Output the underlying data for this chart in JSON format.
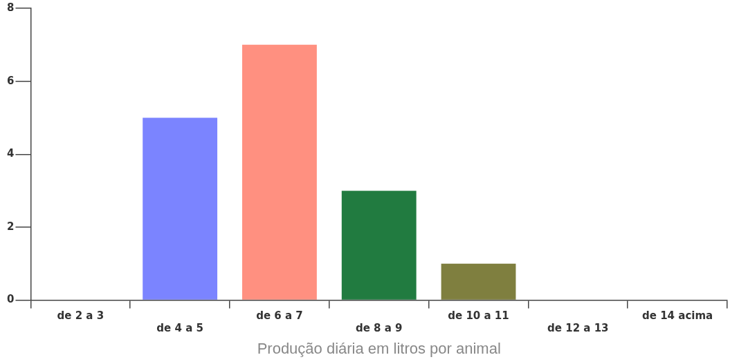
{
  "chart_data": {
    "type": "bar",
    "xlabel": "Produção diária em litros por animal",
    "categories": [
      "de 2 a 3",
      "de 4 a 5",
      "de 6 a 7",
      "de 8 a 9",
      "de 10 a 11",
      "de 12 a 13",
      "de 14 acima"
    ],
    "values": [
      0,
      5,
      7,
      3,
      1,
      0,
      0
    ],
    "colors": [
      "#7b84ff",
      "#7b84ff",
      "#ff9080",
      "#217b40",
      "#7f7f3f",
      "#7f7f3f",
      "#7f7f3f"
    ],
    "ylim": [
      0,
      8
    ],
    "yticks": [
      0,
      2,
      4,
      6,
      8
    ],
    "grid": false,
    "legend": false
  }
}
